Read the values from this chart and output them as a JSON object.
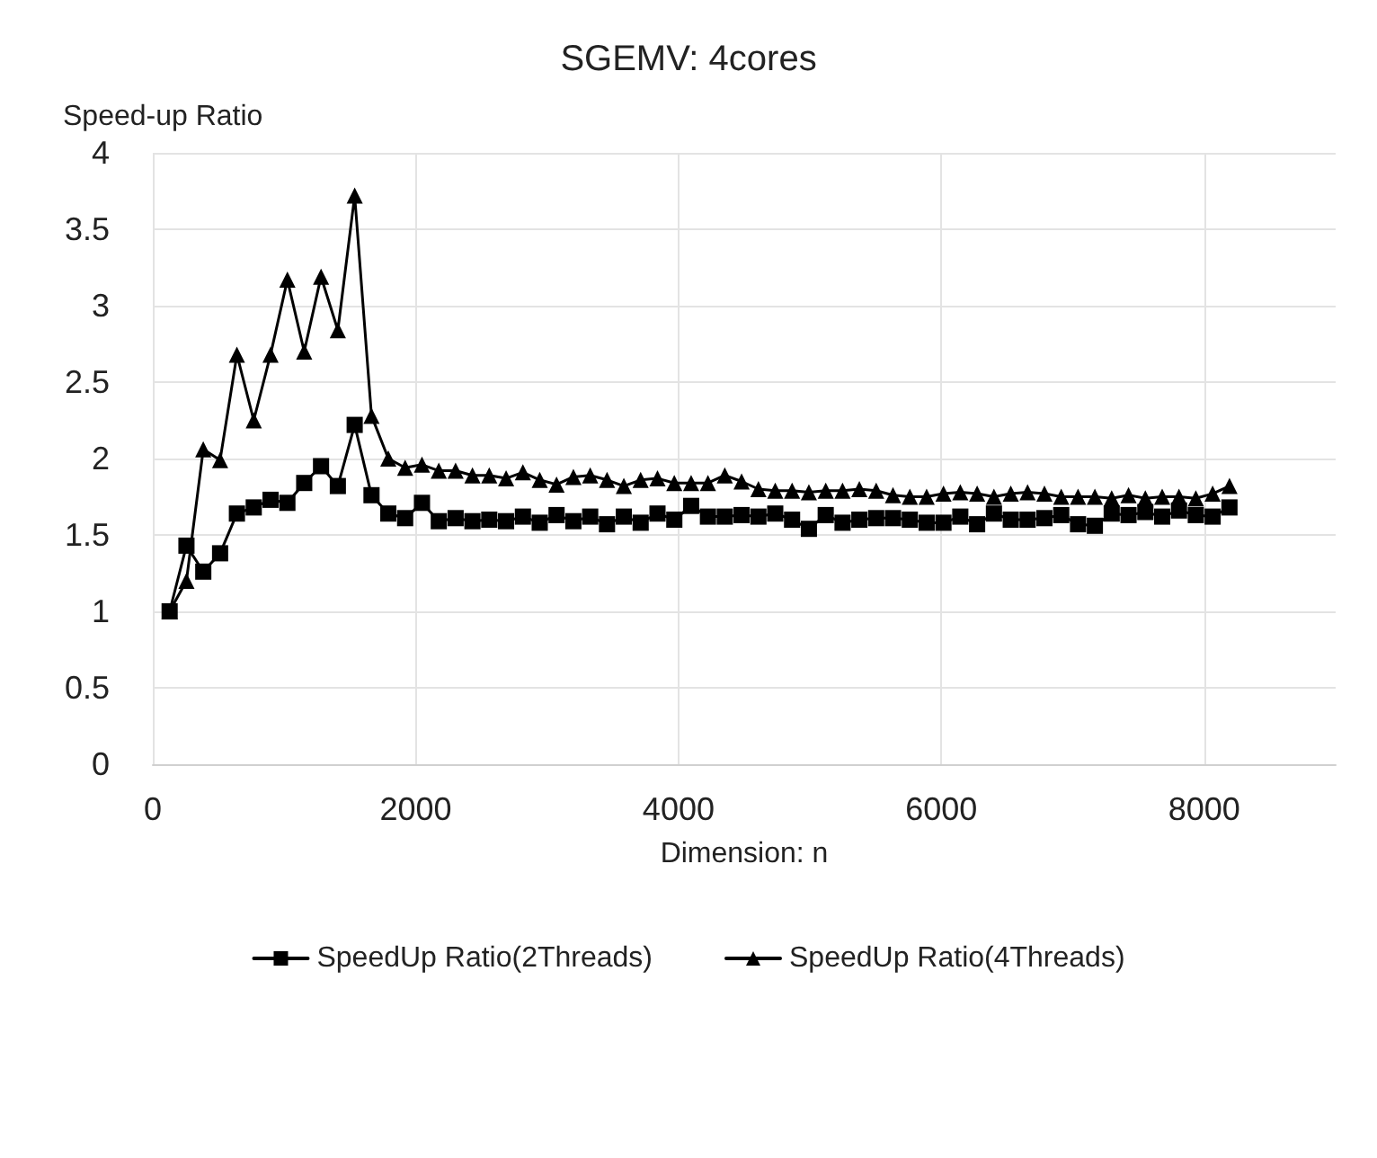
{
  "chart_data": {
    "type": "line",
    "title": "SGEMV: 4cores",
    "xlabel": "Dimension: n",
    "ylabel": "Speed-up Ratio",
    "x": [
      128,
      256,
      384,
      512,
      640,
      768,
      896,
      1024,
      1152,
      1280,
      1408,
      1536,
      1664,
      1792,
      1920,
      2048,
      2176,
      2304,
      2432,
      2560,
      2688,
      2816,
      2944,
      3072,
      3200,
      3328,
      3456,
      3584,
      3712,
      3840,
      3968,
      4096,
      4224,
      4352,
      4480,
      4608,
      4736,
      4864,
      4992,
      5120,
      5248,
      5376,
      5504,
      5632,
      5760,
      5888,
      6016,
      6144,
      6272,
      6400,
      6528,
      6656,
      6784,
      6912,
      7040,
      7168,
      7296,
      7424,
      7552,
      7680,
      7808,
      7936,
      8064,
      8192
    ],
    "series": [
      {
        "name": "SpeedUp Ratio(2Threads)",
        "color": "#000000",
        "marker": "square",
        "values": [
          1.0,
          1.43,
          1.26,
          1.38,
          1.64,
          1.68,
          1.73,
          1.71,
          1.84,
          1.95,
          1.82,
          2.22,
          1.76,
          1.64,
          1.61,
          1.71,
          1.59,
          1.61,
          1.59,
          1.6,
          1.59,
          1.62,
          1.58,
          1.63,
          1.59,
          1.62,
          1.57,
          1.62,
          1.58,
          1.64,
          1.6,
          1.69,
          1.62,
          1.62,
          1.63,
          1.62,
          1.64,
          1.6,
          1.54,
          1.63,
          1.58,
          1.6,
          1.61,
          1.61,
          1.6,
          1.58,
          1.58,
          1.62,
          1.57,
          1.64,
          1.6,
          1.6,
          1.61,
          1.63,
          1.57,
          1.56,
          1.64,
          1.63,
          1.65,
          1.62,
          1.66,
          1.63,
          1.62,
          1.68
        ]
      },
      {
        "name": "SpeedUp Ratio(4Threads)",
        "color": "#000000",
        "marker": "triangle",
        "values": [
          1.0,
          1.2,
          2.06,
          1.99,
          2.68,
          2.25,
          2.68,
          3.17,
          2.7,
          3.19,
          2.84,
          3.72,
          2.28,
          2.0,
          1.94,
          1.96,
          1.92,
          1.92,
          1.89,
          1.89,
          1.87,
          1.91,
          1.86,
          1.83,
          1.88,
          1.89,
          1.86,
          1.82,
          1.86,
          1.87,
          1.84,
          1.84,
          1.84,
          1.89,
          1.85,
          1.8,
          1.79,
          1.79,
          1.78,
          1.79,
          1.79,
          1.8,
          1.79,
          1.76,
          1.75,
          1.75,
          1.77,
          1.78,
          1.77,
          1.75,
          1.77,
          1.78,
          1.77,
          1.75,
          1.75,
          1.75,
          1.74,
          1.76,
          1.74,
          1.75,
          1.75,
          1.74,
          1.77,
          1.82
        ]
      }
    ],
    "xlim": [
      0,
      9000
    ],
    "xticks": [
      0,
      2000,
      4000,
      6000,
      8000
    ],
    "ylim": [
      0,
      4
    ],
    "yticks": [
      0,
      0.5,
      1,
      1.5,
      2,
      2.5,
      3,
      3.5,
      4
    ],
    "grid": true,
    "legend": "bottom",
    "line_style": "solid"
  }
}
